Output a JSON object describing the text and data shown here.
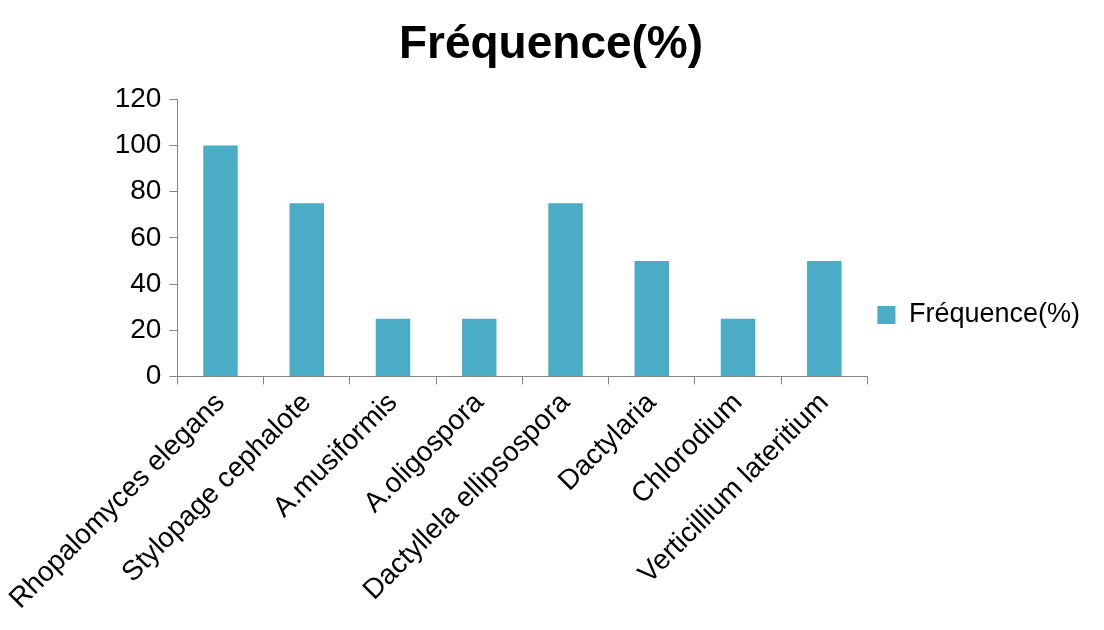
{
  "chart_data": {
    "type": "bar",
    "title": "Fréquence(%)",
    "categories": [
      "Rhopalomyces elegans",
      "Stylopage cephalote",
      "A.musiformis",
      "A.oligospora",
      "Dactyllela ellipsospora",
      "Dactylaria",
      "Chlorodium",
      "Verticillium lateritium"
    ],
    "series": [
      {
        "name": "Fréquence(%)",
        "color": "#4bacc6",
        "values": [
          100,
          75,
          25,
          25,
          75,
          50,
          25,
          50
        ]
      }
    ],
    "ylim": [
      0,
      120
    ],
    "yticks": [
      0,
      20,
      40,
      60,
      80,
      100,
      120
    ],
    "grid": false,
    "legend": "right"
  }
}
